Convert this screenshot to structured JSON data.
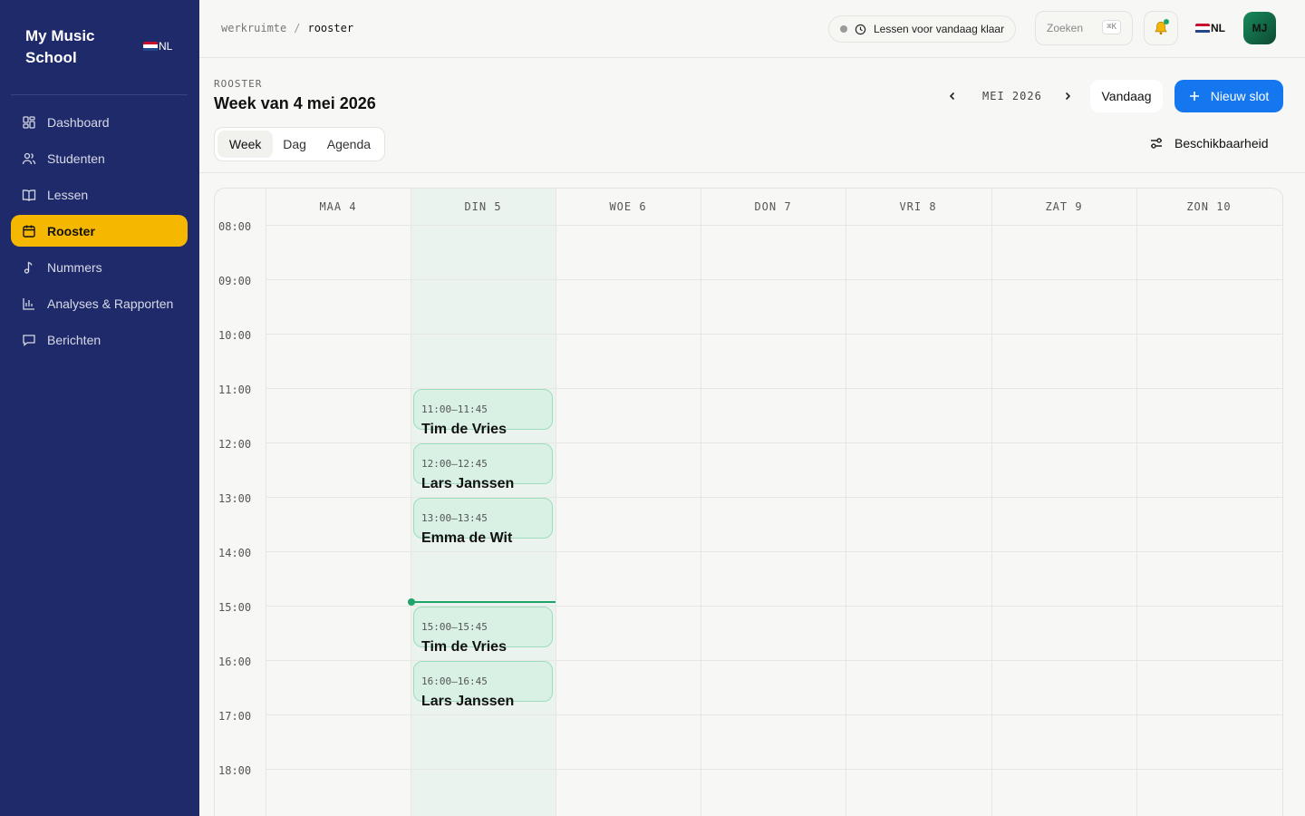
{
  "sidebar": {
    "brand": "My Music School",
    "lang": "NL",
    "items": [
      {
        "label": "Dashboard",
        "icon": "dashboard-icon"
      },
      {
        "label": "Studenten",
        "icon": "users-icon"
      },
      {
        "label": "Lessen",
        "icon": "book-icon"
      },
      {
        "label": "Rooster",
        "icon": "calendar-icon",
        "active": true
      },
      {
        "label": "Nummers",
        "icon": "music-note-icon"
      },
      {
        "label": "Analyses & Rapporten",
        "icon": "bar-chart-icon"
      },
      {
        "label": "Berichten",
        "icon": "message-icon"
      }
    ]
  },
  "topbar": {
    "breadcrumb": [
      "werkruimte",
      "rooster"
    ],
    "status": "Lessen voor vandaag klaar",
    "search_placeholder": "Zoeken",
    "search_shortcut": "⌘K",
    "lang": "NL",
    "avatar_initials": "MJ"
  },
  "header": {
    "eyebrow": "ROOSTER",
    "title": "Week van 4 mei 2026",
    "month": "MEI 2026",
    "today_label": "Vandaag",
    "new_slot_label": "Nieuw slot",
    "tabs": [
      "Week",
      "Dag",
      "Agenda"
    ],
    "active_tab": "Week",
    "availability_label": "Beschikbaarheid"
  },
  "calendar": {
    "days": [
      "MAA 4",
      "DIN 5",
      "WOE 6",
      "DON 7",
      "VRI 8",
      "ZAT 9",
      "ZON 10"
    ],
    "today_index": 1,
    "hours": [
      "08:00",
      "09:00",
      "10:00",
      "11:00",
      "12:00",
      "13:00",
      "14:00",
      "15:00",
      "16:00",
      "17:00",
      "18:00"
    ],
    "events": [
      {
        "time": "11:00–11:45",
        "name": "Tim de Vries"
      },
      {
        "time": "12:00–12:45",
        "name": "Lars Janssen"
      },
      {
        "time": "13:00–13:45",
        "name": "Emma de Wit"
      },
      {
        "time": "15:00–15:45",
        "name": "Tim de Vries"
      },
      {
        "time": "16:00–16:45",
        "name": "Lars Janssen"
      }
    ]
  },
  "colors": {
    "sidebar": "#1f2a6b",
    "active_nav": "#f5b700",
    "primary": "#1577ef",
    "event_bg": "#d9f1e5",
    "today_col": "#ebf3ee",
    "now_line": "#1fa56a"
  }
}
